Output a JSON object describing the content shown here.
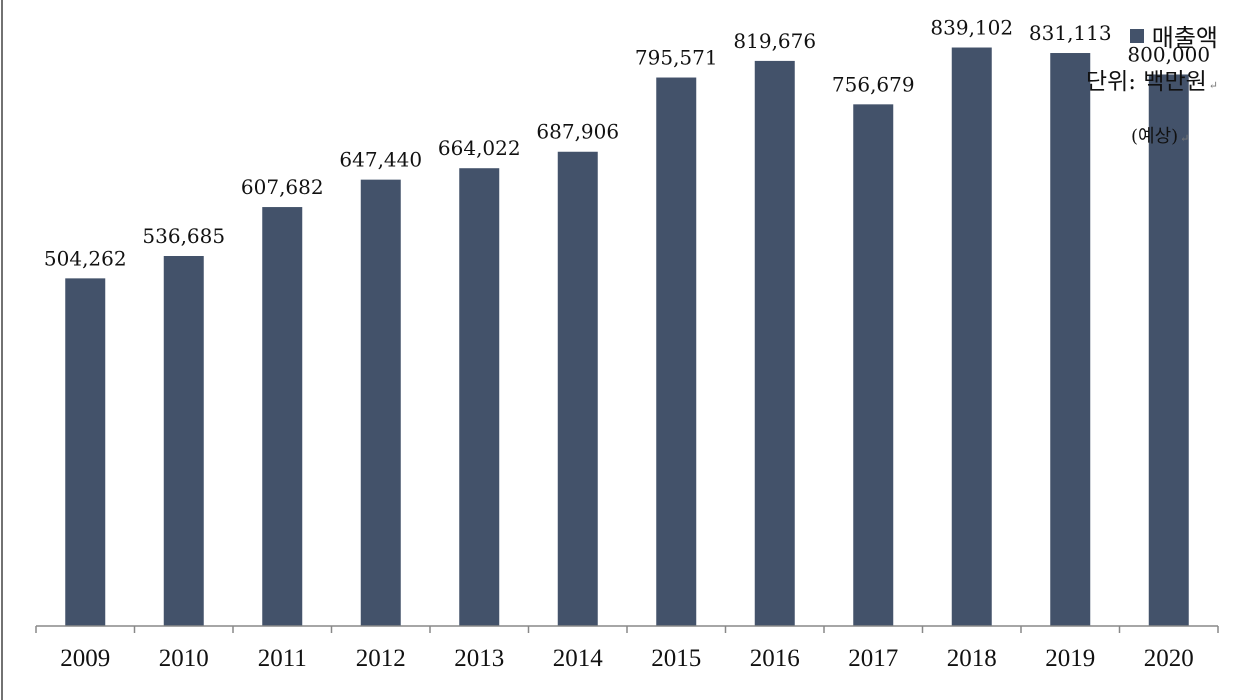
{
  "colors": {
    "bar": "#43526A",
    "axis": "#888888",
    "text": "#111111"
  },
  "legend": {
    "label": "매출액"
  },
  "unit_label": "단위: 백만원",
  "forecast_note": "(예상)",
  "chart_data": {
    "type": "bar",
    "categories": [
      "2009",
      "2010",
      "2011",
      "2012",
      "2013",
      "2014",
      "2015",
      "2016",
      "2017",
      "2018",
      "2019",
      "2020"
    ],
    "series": [
      {
        "name": "매출액",
        "values": [
          504262,
          536685,
          607682,
          647440,
          664022,
          687906,
          795571,
          819676,
          756679,
          839102,
          831113,
          800000
        ],
        "labels": [
          "504,262",
          "536,685",
          "607,682",
          "647,440",
          "664,022",
          "687,906",
          "795,571",
          "819,676",
          "756,679",
          "839,102",
          "831,113",
          "800,000"
        ]
      }
    ],
    "title": "",
    "xlabel": "",
    "ylabel": "",
    "ylim": [
      0,
      850000
    ],
    "grid": false,
    "legend_position": "top-right"
  }
}
